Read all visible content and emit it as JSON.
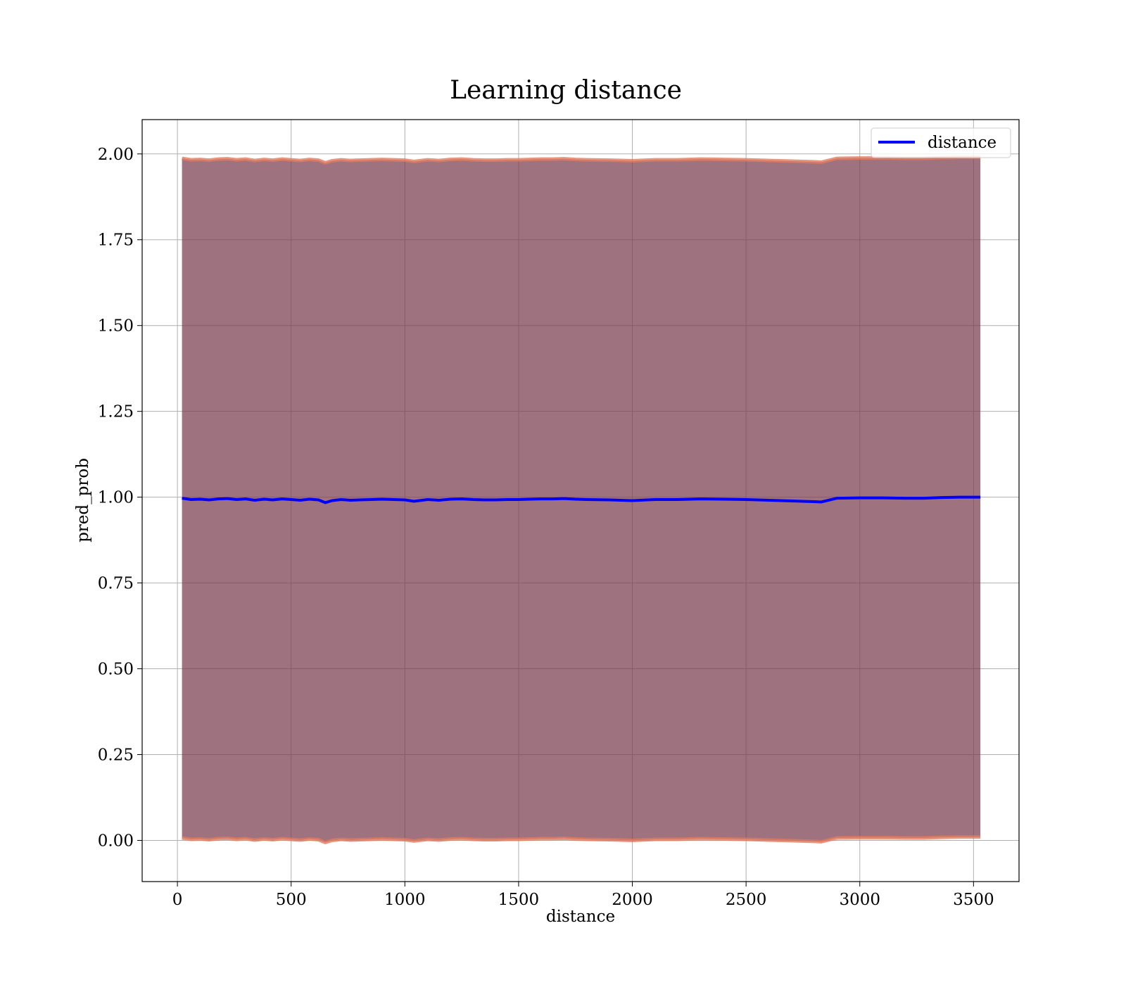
{
  "chart_data": {
    "type": "line",
    "title": "Learning distance",
    "xlabel": "distance",
    "ylabel": "pred_prob",
    "xlim": [
      -155,
      3700
    ],
    "ylim": [
      -0.12,
      2.1
    ],
    "xticks": [
      0,
      500,
      1000,
      1500,
      2000,
      2500,
      3000,
      3500
    ],
    "xtick_labels": [
      "0",
      "500",
      "1000",
      "1500",
      "2000",
      "2500",
      "3000",
      "3500"
    ],
    "yticks": [
      0,
      0.25,
      0.5,
      0.75,
      1.0,
      1.25,
      1.5,
      1.75,
      2.0
    ],
    "ytick_labels": [
      "0.00",
      "0.25",
      "0.50",
      "0.75",
      "1.00",
      "1.25",
      "1.50",
      "1.75",
      "2.00"
    ],
    "grid": true,
    "legend_position": "top-right",
    "series": [
      {
        "name": "distance",
        "color": "#0000ff",
        "x": [
          20,
          60,
          100,
          140,
          180,
          220,
          260,
          300,
          340,
          380,
          420,
          460,
          500,
          540,
          580,
          620,
          650,
          680,
          720,
          760,
          800,
          850,
          900,
          950,
          1000,
          1040,
          1100,
          1150,
          1200,
          1250,
          1300,
          1350,
          1400,
          1450,
          1500,
          1550,
          1600,
          1650,
          1700,
          1750,
          1800,
          1900,
          2000,
          2100,
          2200,
          2300,
          2400,
          2500,
          2600,
          2700,
          2800,
          2830,
          2900,
          3000,
          3100,
          3200,
          3280,
          3360,
          3440,
          3530
        ],
        "y": [
          0.997,
          0.993,
          0.994,
          0.992,
          0.995,
          0.996,
          0.993,
          0.995,
          0.991,
          0.994,
          0.992,
          0.995,
          0.993,
          0.991,
          0.994,
          0.992,
          0.984,
          0.99,
          0.993,
          0.991,
          0.992,
          0.993,
          0.994,
          0.993,
          0.992,
          0.988,
          0.993,
          0.991,
          0.994,
          0.995,
          0.993,
          0.992,
          0.992,
          0.993,
          0.993,
          0.994,
          0.995,
          0.995,
          0.996,
          0.994,
          0.993,
          0.992,
          0.99,
          0.993,
          0.993,
          0.995,
          0.994,
          0.993,
          0.991,
          0.989,
          0.987,
          0.986,
          0.997,
          0.998,
          0.998,
          0.997,
          0.997,
          0.999,
          1.0,
          1.0
        ]
      }
    ],
    "band": {
      "fill_color": "#7a3b4d",
      "edge_color": "#e07a5f",
      "upper_offset": 0.99,
      "lower_offset": 0.99
    }
  }
}
